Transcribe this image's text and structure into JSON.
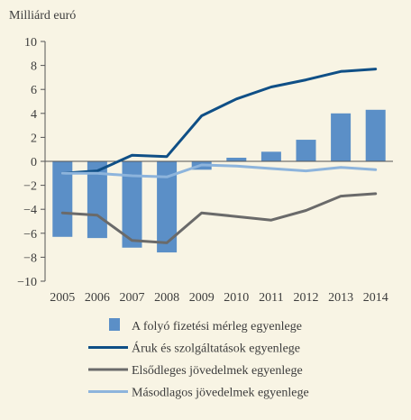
{
  "chart_data": {
    "type": "bar",
    "title": "",
    "ylabel": "Milliárd euró",
    "xlabel": "",
    "ylim": [
      -10,
      10
    ],
    "y_ticks": [
      10,
      8,
      6,
      4,
      2,
      0,
      -2,
      -4,
      -6,
      -8,
      -10
    ],
    "categories": [
      "2005",
      "2006",
      "2007",
      "2008",
      "2009",
      "2010",
      "2011",
      "2012",
      "2013",
      "2014"
    ],
    "grid": false,
    "legend_position": "bottom",
    "series": [
      {
        "name": "A folyó fizetési mérleg egyenlege",
        "type": "bar",
        "color": "#5b8fc7",
        "values": [
          -6.3,
          -6.4,
          -7.2,
          -7.6,
          -0.7,
          0.3,
          0.8,
          1.8,
          4.0,
          4.3
        ]
      },
      {
        "name": "Áruk és szolgáltatások egyenlege",
        "type": "line",
        "color": "#0f4f86",
        "values": [
          -1.0,
          -0.8,
          0.5,
          0.4,
          3.8,
          5.2,
          6.2,
          6.8,
          7.5,
          7.7
        ]
      },
      {
        "name": "Elsődleges jövedelmek egyenlege",
        "type": "line",
        "color": "#6a6a6a",
        "values": [
          -4.3,
          -4.5,
          -6.6,
          -6.8,
          -4.3,
          -4.6,
          -4.9,
          -4.1,
          -2.9,
          -2.7
        ]
      },
      {
        "name": "Másodlagos jövedelmek egyenlege",
        "type": "line",
        "color": "#8db4dc",
        "values": [
          -1.0,
          -1.0,
          -1.2,
          -1.3,
          -0.3,
          -0.4,
          -0.6,
          -0.8,
          -0.5,
          -0.7
        ]
      }
    ]
  }
}
